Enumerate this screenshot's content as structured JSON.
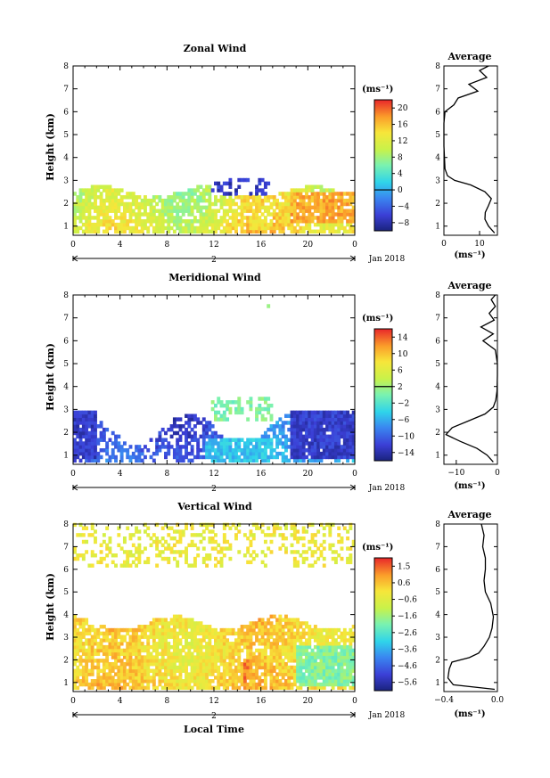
{
  "chart_data": [
    {
      "type": "heatmap",
      "title": "Zonal Wind",
      "ylabel": "Height (km)",
      "xlabel": "",
      "xticks": [
        "0",
        "4",
        "8",
        "12",
        "16",
        "20",
        "0"
      ],
      "yticks": [
        "1",
        "2",
        "3",
        "4",
        "5",
        "6",
        "7",
        "8"
      ],
      "xlim": [
        0,
        24
      ],
      "ylim": [
        0.6,
        8
      ],
      "day_label": "2",
      "date_label": "Jan 2018",
      "colorbar": {
        "unit": "(ms⁻¹)",
        "ticks": [
          "20",
          "16",
          "12",
          "8",
          "4",
          "0",
          "−4",
          "−8"
        ],
        "range": [
          -10,
          22
        ],
        "zero_line": 0
      },
      "scale": {
        "vmin": -10,
        "vmax": 22
      },
      "pattern": {
        "base": 10.0,
        "slope": 0.2,
        "amp": 3.0,
        "ampy": 1.5,
        "noise": 2.0,
        "top_lo": 2.2,
        "top_hi": 2.7,
        "fill": 0.8
      },
      "blobs": [
        {
          "x0": 18.5,
          "x1": 24.0,
          "y0": 1.1,
          "y1": 2.4,
          "value": 17.0
        },
        {
          "x0": 14.8,
          "x1": 17.0,
          "y0": 0.8,
          "y1": 2.0,
          "value": 14.0
        },
        {
          "x0": 11.6,
          "x1": 16.6,
          "y0": 2.2,
          "y1": 3.0,
          "value": -7.0,
          "fill": 0.35
        },
        {
          "x0": 14.8,
          "x1": 15.0,
          "y0": 6.5,
          "y1": 6.7,
          "value": -6.0,
          "fill": 1.0
        }
      ],
      "profile": {
        "title": "Average",
        "xlabel": "(ms⁻¹)",
        "xticks": [
          "0",
          "10"
        ],
        "xlim": [
          0,
          15
        ],
        "ylim": [
          0.6,
          8
        ],
        "yticks": [
          "1",
          "2",
          "3",
          "4",
          "5",
          "6",
          "7",
          "8"
        ],
        "y": [
          0.7,
          1.0,
          1.3,
          1.6,
          1.9,
          2.2,
          2.5,
          2.8,
          3.0,
          3.2,
          3.5,
          4.5,
          5.5,
          6.0,
          6.3,
          6.6,
          6.9,
          7.2,
          7.5,
          7.8,
          8.0
        ],
        "x": [
          14.2,
          12.5,
          11.5,
          11.6,
          12.5,
          13.3,
          11.5,
          7.5,
          3.0,
          1.0,
          0.3,
          0.0,
          0.0,
          0.3,
          2.8,
          4.0,
          9.5,
          7.0,
          12.0,
          10.0,
          12.5
        ]
      }
    },
    {
      "type": "heatmap",
      "title": "Meridional Wind",
      "ylabel": "Height (km)",
      "xlabel": "",
      "xticks": [
        "0",
        "4",
        "8",
        "12",
        "16",
        "20",
        "0"
      ],
      "yticks": [
        "1",
        "2",
        "3",
        "4",
        "5",
        "6",
        "7",
        "8"
      ],
      "xlim": [
        0,
        24
      ],
      "ylim": [
        0.6,
        8
      ],
      "day_label": "2",
      "date_label": "Jan 2018",
      "colorbar": {
        "unit": "(ms⁻¹)",
        "ticks": [
          "14",
          "10",
          "6",
          "2",
          "−2",
          "−6",
          "−10",
          "−14"
        ],
        "range": [
          -16,
          16
        ],
        "zero_line": 2
      },
      "scale": {
        "vmin": -16,
        "vmax": 16
      },
      "pattern": {
        "base": -12.5,
        "slope": 0.3,
        "amp": 2.0,
        "ampy": 1.5,
        "noise": 1.8,
        "top_lo": 1.4,
        "top_hi": 2.8,
        "fill": 0.55
      },
      "blobs": [
        {
          "x0": 0.0,
          "x1": 2.0,
          "y0": 0.8,
          "y1": 2.9,
          "value": -13.0,
          "fill": 0.95
        },
        {
          "x0": 11.2,
          "x1": 17.0,
          "y0": 0.7,
          "y1": 1.6,
          "value": -5.0,
          "fill": 0.9
        },
        {
          "x0": 18.5,
          "x1": 24.0,
          "y0": 0.8,
          "y1": 2.8,
          "value": -12.5,
          "fill": 0.95
        },
        {
          "x0": 11.6,
          "x1": 17.0,
          "y0": 2.4,
          "y1": 3.5,
          "value": 0.5,
          "fill": 0.45
        },
        {
          "x0": 16.5,
          "x1": 16.65,
          "y0": 7.45,
          "y1": 7.6,
          "value": 0.5,
          "fill": 1.0
        }
      ],
      "profile": {
        "title": "Average",
        "xlabel": "(ms⁻¹)",
        "xticks": [
          "−10",
          "0"
        ],
        "xlim": [
          -13,
          0
        ],
        "ylim": [
          0.6,
          8
        ],
        "yticks": [
          "1",
          "2",
          "3",
          "4",
          "5",
          "6",
          "7",
          "8"
        ],
        "y": [
          0.7,
          1.0,
          1.3,
          1.6,
          1.9,
          2.2,
          2.5,
          2.8,
          3.1,
          3.4,
          3.8,
          4.5,
          5.0,
          5.6,
          6.0,
          6.3,
          6.6,
          6.9,
          7.2,
          7.5,
          7.8,
          8.0
        ],
        "x": [
          -1.0,
          -2.5,
          -5.0,
          -9.0,
          -12.5,
          -11.0,
          -7.0,
          -3.0,
          -1.0,
          -0.4,
          -0.1,
          0.0,
          0.0,
          -0.5,
          -3.5,
          -1.0,
          -4.0,
          -0.8,
          -2.0,
          -0.5,
          -1.5,
          -0.5
        ]
      }
    },
    {
      "type": "heatmap",
      "title": "Vertical Wind",
      "ylabel": "Height (km)",
      "xlabel": "Local Time",
      "xticks": [
        "0",
        "4",
        "8",
        "12",
        "16",
        "20",
        "0"
      ],
      "yticks": [
        "1",
        "2",
        "3",
        "4",
        "5",
        "6",
        "7",
        "8"
      ],
      "xlim": [
        0,
        24
      ],
      "ylim": [
        0.6,
        8
      ],
      "day_label": "2",
      "date_label": "Jan 2018",
      "colorbar": {
        "unit": "(ms⁻¹)",
        "ticks": [
          "1.5",
          "0.6",
          "−0.6",
          "−1.6",
          "−2.6",
          "−3.6",
          "−4.6",
          "−5.6"
        ],
        "range": [
          -6.2,
          2.2
        ]
      },
      "scale": {
        "vmin": -6.2,
        "vmax": 2.2
      },
      "pattern": {
        "base": 0.3,
        "slope": 0.0,
        "amp": 0.4,
        "ampy": 0.2,
        "noise": 0.55,
        "top_lo": 3.3,
        "top_hi": 3.9,
        "fill": 0.85
      },
      "blobs": [
        {
          "x0": 0.0,
          "x1": 24.0,
          "y0": 6.0,
          "y1": 8.0,
          "value": -0.2,
          "fill": 0.3
        },
        {
          "x0": 19.0,
          "x1": 24.0,
          "y0": 0.8,
          "y1": 2.5,
          "value": -1.8,
          "fill": 0.9
        },
        {
          "x0": 14.3,
          "x1": 15.0,
          "y0": 0.8,
          "y1": 2.0,
          "value": 1.3,
          "fill": 0.85
        }
      ],
      "profile": {
        "title": "Average",
        "xlabel": "(ms⁻¹)",
        "xticks": [
          "−0.4",
          "0.0"
        ],
        "xlim": [
          -0.4,
          0.0
        ],
        "ylim": [
          0.6,
          8
        ],
        "yticks": [
          "1",
          "2",
          "3",
          "4",
          "5",
          "6",
          "7",
          "8"
        ],
        "y": [
          0.7,
          0.9,
          1.2,
          1.6,
          1.9,
          2.1,
          2.3,
          2.6,
          3.0,
          3.4,
          3.9,
          4.5,
          5.0,
          5.5,
          6.0,
          6.5,
          7.0,
          7.5,
          8.0
        ],
        "x": [
          -0.02,
          -0.33,
          -0.37,
          -0.36,
          -0.34,
          -0.21,
          -0.14,
          -0.1,
          -0.06,
          -0.04,
          -0.03,
          -0.05,
          -0.09,
          -0.1,
          -0.09,
          -0.09,
          -0.11,
          -0.1,
          -0.12
        ]
      }
    }
  ]
}
